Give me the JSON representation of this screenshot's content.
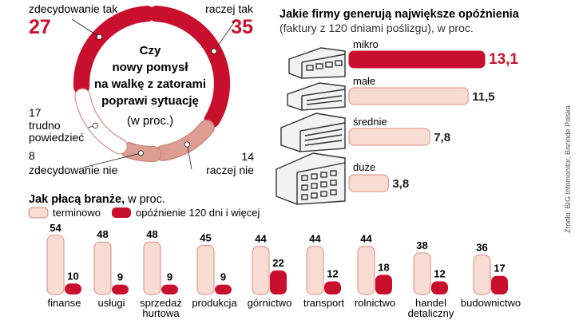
{
  "donut": {
    "title_lines": [
      "Czy",
      "nowy pomysł",
      "na walkę z zatorami",
      "poprawi sytuację"
    ],
    "unit": "(w proc.)",
    "slices": [
      {
        "label": "zdecydowanie tak",
        "value": 27
      },
      {
        "label": "raczej tak",
        "value": 35
      },
      {
        "label": "raczej nie",
        "value": 14
      },
      {
        "label": "zdecydowanie nie",
        "value": 8
      },
      {
        "label_lines": [
          "trudno",
          "powiedzieć"
        ],
        "value": 17
      }
    ]
  },
  "companies": {
    "title": "Jakie firmy generują największe opóźnienia",
    "subtitle": "(faktury z 120 dniami poślizgu), w proc.",
    "items": [
      {
        "label": "mikro",
        "value": "13,1"
      },
      {
        "label": "małe",
        "value": "11,5"
      },
      {
        "label": "średnie",
        "value": "7,8"
      },
      {
        "label": "duże",
        "value": "3,8"
      }
    ]
  },
  "branches": {
    "title_bold": "Jak płacą branże,",
    "title_rest": " w proc.",
    "legend": [
      "terminowo",
      "opóźnienie 120 dni i więcej"
    ]
  },
  "source": "Źródło: BIG Infomonitor, Bisnode Polska",
  "colors": {
    "accent": "#c8102e",
    "light_fill": "#f8dcd4",
    "light_stroke": "#d98d84",
    "muted_slice": "#dc9e93"
  },
  "chart_data": [
    {
      "type": "pie",
      "categories": [
        "zdecydowanie tak",
        "raczej tak",
        "raczej nie",
        "zdecydowanie nie",
        "trudno powiedzieć"
      ],
      "values": [
        27,
        35,
        14,
        8,
        17
      ],
      "title": "Czy nowy pomysł na walkę z zatorami poprawi sytuację (w proc.)"
    },
    {
      "type": "bar",
      "categories": [
        "mikro",
        "małe",
        "średnie",
        "duże"
      ],
      "values": [
        13.1,
        11.5,
        7.8,
        3.8
      ],
      "title": "Jakie firmy generują największe opóźnienia",
      "subtitle": "(faktury z 120 dniami poślizgu), w proc.",
      "xlim": [
        0,
        13.1
      ]
    },
    {
      "type": "bar",
      "categories": [
        "finanse",
        "usługi",
        "sprzedaż hurtowa",
        "produkcja",
        "górnictwo",
        "transport",
        "rolnictwo",
        "handel detaliczny",
        "budownictwo"
      ],
      "category_lines": [
        [
          "finanse"
        ],
        [
          "usługi"
        ],
        [
          "sprzedaż",
          "hurtowa"
        ],
        [
          "produkcja"
        ],
        [
          "górnictwo"
        ],
        [
          "transport"
        ],
        [
          "rolnictwo"
        ],
        [
          "handel",
          "detaliczny"
        ],
        [
          "budownictwo"
        ]
      ],
      "series": [
        {
          "name": "terminowo",
          "values": [
            54,
            48,
            48,
            45,
            44,
            44,
            44,
            38,
            36
          ]
        },
        {
          "name": "opóźnienie 120 dni i więcej",
          "values": [
            10,
            9,
            9,
            9,
            22,
            12,
            18,
            12,
            17
          ]
        }
      ],
      "title": "Jak płacą branże, w proc.",
      "ylim": [
        0,
        54
      ],
      "legend": "top-left"
    }
  ]
}
